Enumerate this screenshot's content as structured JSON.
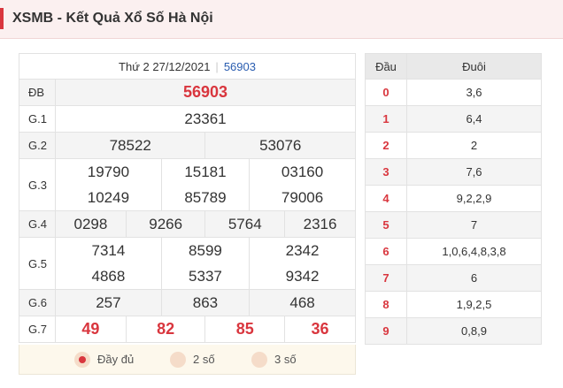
{
  "header": {
    "title": "XSMB - Kết Quả Xổ Số Hà Nội"
  },
  "results": {
    "date": "Thứ 2 27/12/2021",
    "code": "56903",
    "rows": [
      {
        "label": "ĐB",
        "values": [
          "56903"
        ]
      },
      {
        "label": "G.1",
        "values": [
          "23361"
        ]
      },
      {
        "label": "G.2",
        "values": [
          "78522",
          "53076"
        ]
      },
      {
        "label": "G.3",
        "values": [
          "19790",
          "15181",
          "03160",
          "10249",
          "85789",
          "79006"
        ]
      },
      {
        "label": "G.4",
        "values": [
          "0298",
          "9266",
          "5764",
          "2316"
        ]
      },
      {
        "label": "G.5",
        "values": [
          "7314",
          "8599",
          "2342",
          "4868",
          "5337",
          "9342"
        ]
      },
      {
        "label": "G.6",
        "values": [
          "257",
          "863",
          "468"
        ]
      },
      {
        "label": "G.7",
        "values": [
          "49",
          "82",
          "85",
          "36"
        ]
      }
    ]
  },
  "options": [
    {
      "label": "Đầy đủ",
      "selected": true
    },
    {
      "label": "2 số",
      "selected": false
    },
    {
      "label": "3 số",
      "selected": false
    }
  ],
  "tails": {
    "headers": [
      "Đầu",
      "Đuôi"
    ],
    "rows": [
      {
        "head": "0",
        "tail": "3,6"
      },
      {
        "head": "1",
        "tail": "6,4"
      },
      {
        "head": "2",
        "tail": "2"
      },
      {
        "head": "3",
        "tail": "7,6"
      },
      {
        "head": "4",
        "tail": "9,2,2,9"
      },
      {
        "head": "5",
        "tail": "7"
      },
      {
        "head": "6",
        "tail": "1,0,6,4,8,3,8"
      },
      {
        "head": "7",
        "tail": "6"
      },
      {
        "head": "8",
        "tail": "1,9,2,5"
      },
      {
        "head": "9",
        "tail": "0,8,9"
      }
    ]
  },
  "colors": {
    "accent": "#d9363e",
    "code": "#2a5db0",
    "header_bg": "#fbf0f0",
    "options_bg": "#fdf8ec"
  }
}
